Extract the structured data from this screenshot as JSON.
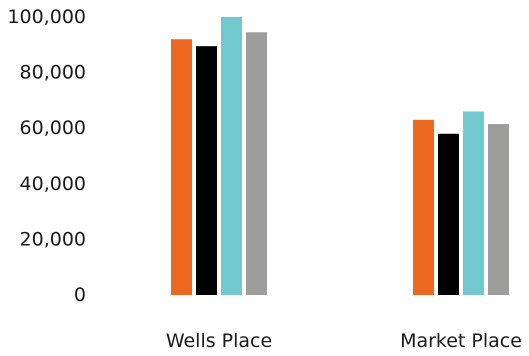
{
  "chart_data": {
    "type": "bar",
    "title": "",
    "xlabel": "",
    "ylabel": "",
    "ylim": [
      0,
      100000
    ],
    "y_ticks": [
      "0",
      "20,000",
      "40,000",
      "60,000",
      "80,000",
      "100,000"
    ],
    "y_tick_values": [
      0,
      20000,
      40000,
      60000,
      80000,
      100000
    ],
    "grid": false,
    "legend": "none",
    "categories": [
      "Wells Place",
      "Market Place"
    ],
    "series": [
      {
        "color": "#ec671f",
        "values": [
          92000,
          63000
        ]
      },
      {
        "color": "#000000",
        "values": [
          89500,
          58000
        ]
      },
      {
        "color": "#72c8cf",
        "values": [
          100000,
          66000
        ]
      },
      {
        "color": "#9d9d9b",
        "values": [
          94500,
          61500
        ]
      }
    ]
  }
}
